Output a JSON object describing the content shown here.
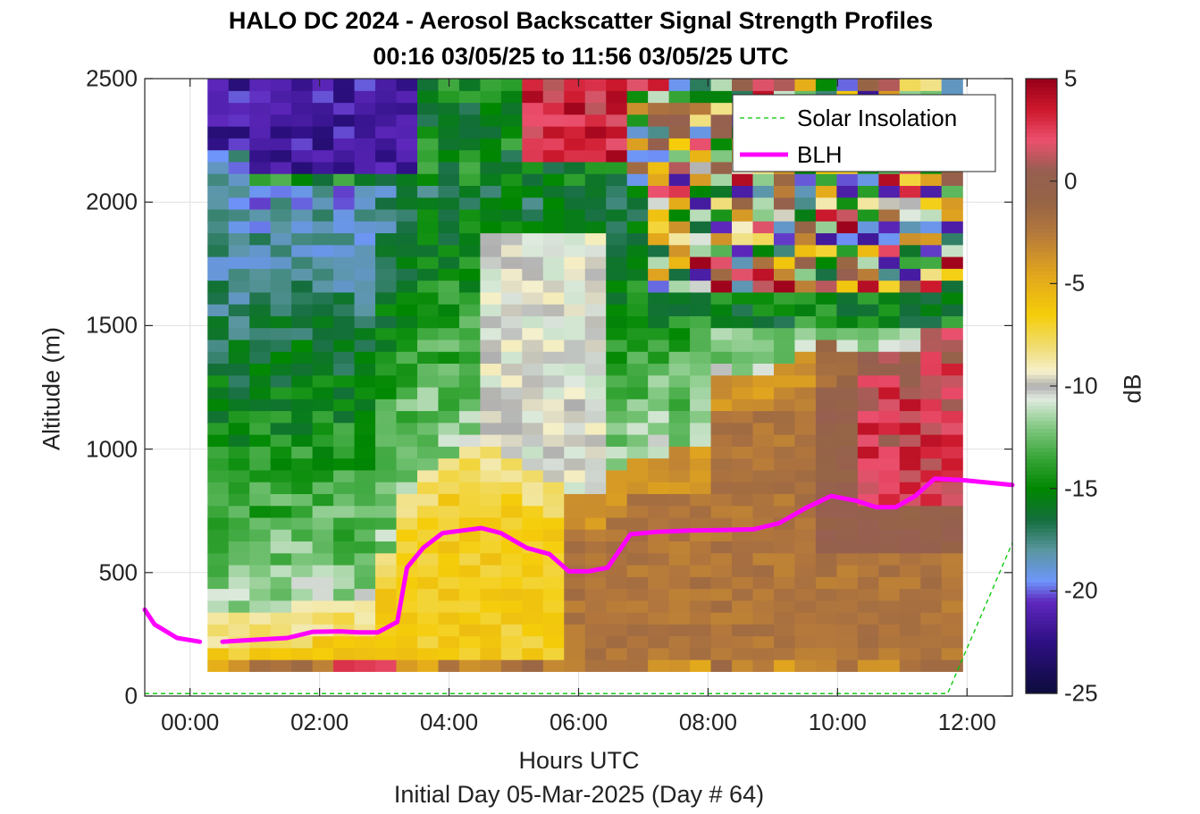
{
  "title_line1": "HALO DC 2024 - Aerosol Backscatter Signal Strength Profiles",
  "title_line2": "00:16 03/05/25 to 11:56 03/05/25  UTC",
  "colors": {
    "blh_line": "#ff00ff",
    "solar_line": "#00c800",
    "grid": "#e0e0e0",
    "axes": "#262626"
  },
  "chart_data": {
    "type": "heatmap",
    "title": "HALO DC 2024 - Aerosol Backscatter Signal Strength Profiles",
    "subtitle": "00:16 03/05/25 to 11:56 03/05/25  UTC",
    "xlabel": "Hours UTC",
    "xlabel2": "Initial Day 05-Mar-2025 (Day # 64)",
    "ylabel": "Altitude (m)",
    "colorbar_label": "dB",
    "x_tick_labels": [
      "00:00",
      "02:00",
      "04:00",
      "06:00",
      "08:00",
      "10:00",
      "12:00"
    ],
    "x_tick_hours": [
      0,
      2,
      4,
      6,
      8,
      10,
      12
    ],
    "y_ticks": [
      0,
      500,
      1000,
      1500,
      2000,
      2500
    ],
    "colorbar_ticks": [
      5,
      0,
      -5,
      -10,
      -15,
      -20,
      -25
    ],
    "xlim_hours": [
      -0.7,
      12.7
    ],
    "ylim": [
      0,
      2500
    ],
    "clim_db": [
      -25,
      5
    ],
    "grid": true,
    "legend": {
      "placement": "top-right",
      "entries": [
        "Solar Insolation",
        "BLH"
      ]
    },
    "heatmap_time_start_hours": 0.27,
    "heatmap_time_end_hours": 11.93,
    "heatmap_alt_start": 100,
    "heatmap_alt_end": 2500,
    "heatmap_profiles": 36,
    "heatmap_levels": 50,
    "series": [
      {
        "name": "BLH",
        "x": [
          -0.7,
          -0.55,
          -0.2,
          0.15
        ],
        "y": [
          350,
          290,
          235,
          220
        ]
      },
      {
        "name": "BLH",
        "x": [
          0.5,
          1.0,
          1.5,
          1.9,
          2.3,
          2.6,
          2.9,
          3.2,
          3.35,
          3.6,
          3.9,
          4.2,
          4.5,
          4.8,
          5.2,
          5.55,
          5.85,
          6.15,
          6.45,
          6.8,
          7.2,
          7.7,
          8.2,
          8.7,
          9.1,
          9.5,
          9.9,
          10.3,
          10.6,
          10.9,
          11.2,
          11.5,
          11.9,
          12.7
        ],
        "y": [
          220,
          228,
          235,
          260,
          262,
          258,
          258,
          300,
          520,
          600,
          660,
          670,
          680,
          660,
          600,
          575,
          505,
          505,
          520,
          655,
          665,
          670,
          672,
          675,
          700,
          760,
          810,
          790,
          765,
          765,
          810,
          880,
          875,
          855
        ]
      },
      {
        "name": "Solar Insolation",
        "x": [
          -0.7,
          11.7,
          12.7
        ],
        "y": [
          10,
          10,
          620
        ]
      }
    ]
  }
}
